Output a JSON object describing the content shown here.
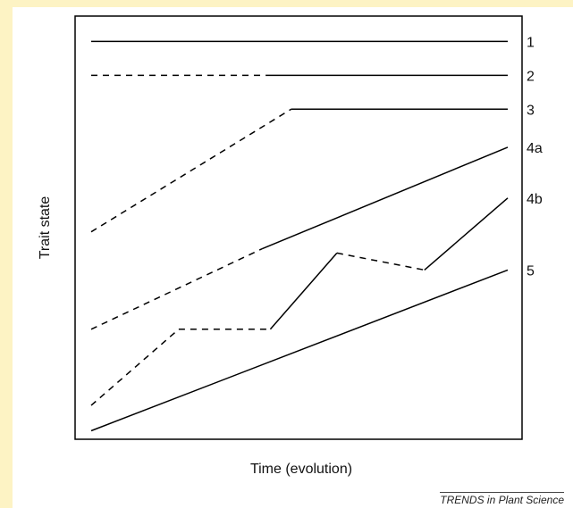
{
  "figure": {
    "y_axis_label": "Trait state",
    "x_axis_label": "Time (evolution)",
    "credit": "TRENDS in Plant Science",
    "colors": {
      "line": "#000000",
      "side_band": "#fdf3c4",
      "background": "#ffffff"
    }
  },
  "chart_data": {
    "type": "line",
    "xlabel": "Time (evolution)",
    "ylabel": "Trait state",
    "series": [
      {
        "name": "1",
        "segments": [
          {
            "style": "solid",
            "points": [
              [
                0.0,
                0.94
              ],
              [
                1.0,
                0.94
              ]
            ]
          }
        ]
      },
      {
        "name": "2",
        "segments": [
          {
            "style": "dashed",
            "points": [
              [
                0.0,
                0.86
              ],
              [
                0.42,
                0.86
              ]
            ]
          },
          {
            "style": "solid",
            "points": [
              [
                0.42,
                0.86
              ],
              [
                1.0,
                0.86
              ]
            ]
          }
        ]
      },
      {
        "name": "3",
        "segments": [
          {
            "style": "dashed",
            "points": [
              [
                0.0,
                0.49
              ],
              [
                0.48,
                0.78
              ]
            ]
          },
          {
            "style": "solid",
            "points": [
              [
                0.48,
                0.78
              ],
              [
                1.0,
                0.78
              ]
            ]
          }
        ]
      },
      {
        "name": "4a",
        "segments": [
          {
            "style": "dashed",
            "points": [
              [
                0.0,
                0.26
              ],
              [
                0.41,
                0.45
              ]
            ]
          },
          {
            "style": "solid",
            "points": [
              [
                0.41,
                0.45
              ],
              [
                1.0,
                0.69
              ]
            ]
          }
        ]
      },
      {
        "name": "4b",
        "segments": [
          {
            "style": "dashed",
            "points": [
              [
                0.0,
                0.08
              ],
              [
                0.21,
                0.26
              ]
            ]
          },
          {
            "style": "dashed",
            "points": [
              [
                0.21,
                0.26
              ],
              [
                0.43,
                0.26
              ]
            ]
          },
          {
            "style": "solid",
            "points": [
              [
                0.43,
                0.26
              ],
              [
                0.59,
                0.44
              ]
            ]
          },
          {
            "style": "dashed",
            "points": [
              [
                0.59,
                0.44
              ],
              [
                0.8,
                0.4
              ]
            ]
          },
          {
            "style": "solid",
            "points": [
              [
                0.8,
                0.4
              ],
              [
                1.0,
                0.57
              ]
            ]
          }
        ]
      },
      {
        "name": "5",
        "segments": [
          {
            "style": "solid",
            "points": [
              [
                0.0,
                0.02
              ],
              [
                1.0,
                0.4
              ]
            ]
          }
        ]
      }
    ],
    "xlim": [
      0,
      1
    ],
    "ylim": [
      0,
      1
    ],
    "ticks": "none",
    "grid": false,
    "legend": "series labels at right end of lines"
  }
}
